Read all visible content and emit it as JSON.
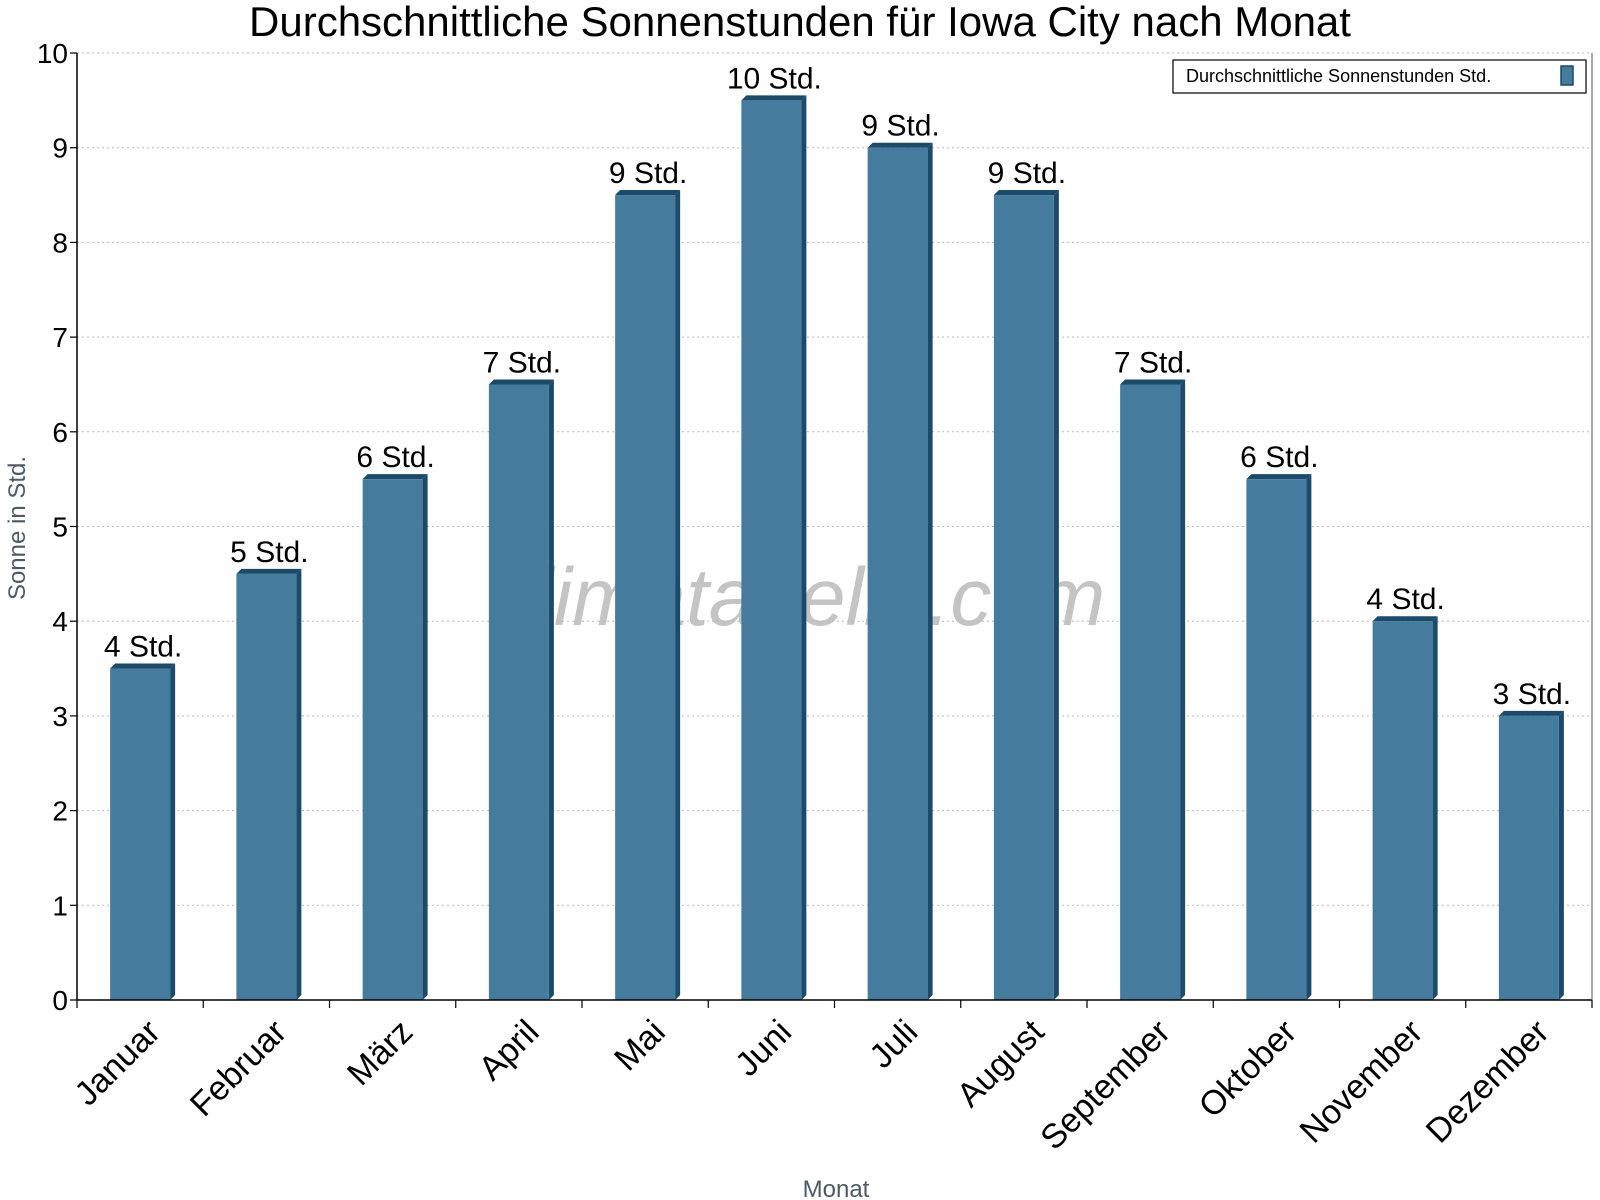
{
  "chart_data": {
    "type": "bar",
    "title": "Durchschnittliche Sonnenstunden für Iowa City nach Monat",
    "xlabel": "Monat",
    "ylabel": "Sonne in Std.",
    "ylim": [
      0,
      10
    ],
    "yticks": [
      "0",
      "1",
      "2",
      "3",
      "4",
      "5",
      "6",
      "7",
      "8",
      "9",
      "10"
    ],
    "grid": true,
    "legend_position": "top-right",
    "categories": [
      "Januar",
      "Februar",
      "März",
      "April",
      "Mai",
      "Juni",
      "Juli",
      "August",
      "September",
      "Oktober",
      "November",
      "Dezember"
    ],
    "series": [
      {
        "name": "Durchschnittliche Sonnenstunden Std.",
        "color": "#457b9d",
        "values": [
          3.5,
          4.5,
          5.5,
          6.5,
          8.5,
          9.5,
          9.0,
          8.5,
          6.5,
          5.5,
          4.0,
          3.0
        ],
        "labels": [
          "4 Std.",
          "5 Std.",
          "6 Std.",
          "7 Std.",
          "9 Std.",
          "10 Std.",
          "9 Std.",
          "9 Std.",
          "7 Std.",
          "6 Std.",
          "4 Std.",
          "3 Std."
        ]
      }
    ],
    "watermark": "klimatabelle.com"
  }
}
